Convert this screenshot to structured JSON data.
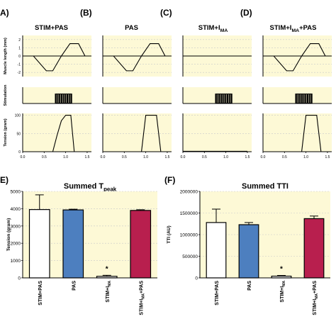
{
  "panels_top": [
    {
      "letter": "A)",
      "title": "STIM+PAS",
      "stim": true,
      "tension": "stim_pas",
      "stim_base": "STIM+I",
      "stim_sub": "",
      "stim_tail": ""
    },
    {
      "letter": "(B)",
      "title": "PAS",
      "stim": false,
      "tension": "pas"
    },
    {
      "letter": "(C)",
      "title": "",
      "stim": true,
      "tension": "flat",
      "title_base": "STIM+I",
      "title_sub": "MA",
      "title_tail": ""
    },
    {
      "letter": "(D)",
      "title": "",
      "stim": true,
      "tension": "pas",
      "title_base": "STIM+I",
      "title_sub": "MA",
      "title_tail": "+PAS"
    }
  ],
  "row_labels": {
    "muscle_length": "Muscle length (mm)",
    "stimulation": "Stimulation",
    "tension": "Tension (gram)"
  },
  "muscle_length_ticks": [
    "2",
    "1",
    "0",
    "-1",
    "-2"
  ],
  "tension_ticks": [
    "100",
    "50",
    "0"
  ],
  "time_ticks": [
    "0.0",
    "0.5",
    "1.0",
    "1.5"
  ],
  "chart_data": [
    {
      "type": "line",
      "panel": "A",
      "title": "STIM+PAS",
      "series": [
        {
          "name": "Muscle length (mm)",
          "x": [
            0.0,
            0.25,
            0.55,
            0.7,
            0.9,
            1.1,
            1.3,
            1.45
          ],
          "y": [
            0,
            0,
            -1.8,
            -1.8,
            0,
            1.5,
            1.5,
            0
          ]
        },
        {
          "name": "Tension (gram)",
          "x": [
            0.0,
            0.7,
            0.8,
            0.9,
            1.0,
            1.12,
            1.2,
            1.5
          ],
          "y": [
            0,
            0,
            45,
            85,
            100,
            100,
            0,
            0
          ]
        }
      ],
      "stimulation": {
        "x_range": [
          0.75,
          1.15
        ]
      }
    },
    {
      "type": "line",
      "panel": "B",
      "title": "PAS",
      "series": [
        {
          "name": "Muscle length (mm)",
          "x": [
            0.0,
            0.25,
            0.55,
            0.7,
            0.9,
            1.1,
            1.3,
            1.45
          ],
          "y": [
            0,
            0,
            -1.8,
            -1.8,
            0,
            1.5,
            1.5,
            0
          ]
        },
        {
          "name": "Tension (gram)",
          "x": [
            0.0,
            0.9,
            1.0,
            1.25,
            1.35,
            1.5
          ],
          "y": [
            0,
            0,
            100,
            100,
            0,
            0
          ]
        }
      ]
    },
    {
      "type": "line",
      "panel": "C",
      "title": "STIM+I_MA",
      "series": [
        {
          "name": "Muscle length (mm)",
          "x": [
            0.0,
            1.5
          ],
          "y": [
            0,
            0
          ]
        },
        {
          "name": "Tension (gram)",
          "x": [
            0.0,
            1.5
          ],
          "y": [
            1,
            1
          ]
        }
      ],
      "stimulation": {
        "x_range": [
          0.75,
          1.15
        ]
      }
    },
    {
      "type": "line",
      "panel": "D",
      "title": "STIM+I_MA+PAS",
      "series": [
        {
          "name": "Muscle length (mm)",
          "x": [
            0.0,
            0.25,
            0.55,
            0.7,
            0.9,
            1.1,
            1.3,
            1.45
          ],
          "y": [
            0,
            0,
            -1.8,
            -1.8,
            0,
            1.5,
            1.5,
            0
          ]
        },
        {
          "name": "Tension (gram)",
          "x": [
            0.0,
            0.9,
            1.0,
            1.25,
            1.35,
            1.5
          ],
          "y": [
            0,
            0,
            100,
            100,
            0,
            0
          ]
        }
      ],
      "stimulation": {
        "x_range": [
          0.75,
          1.15
        ]
      }
    },
    {
      "type": "bar",
      "panel": "E",
      "letter": "E)",
      "title": "Summed T",
      "title_sub": "peak",
      "ylabel": "Tension (gram)",
      "ylim": [
        0,
        5000
      ],
      "yticks": [
        "0",
        "1000",
        "2000",
        "3000",
        "4000",
        "5000"
      ],
      "categories": [
        "STIM+PAS",
        "PAS",
        "STIM+I_MA",
        "STIM+I_MA+PAS"
      ],
      "values": [
        3950,
        3930,
        90,
        3900
      ],
      "errors": [
        850,
        40,
        60,
        40
      ],
      "colors": [
        "#ffffff",
        "#4d7fbf",
        "#ffffff",
        "#b81f4e"
      ],
      "significance": {
        "index": 2,
        "mark": "*"
      }
    },
    {
      "type": "bar",
      "panel": "F",
      "letter": "(F)",
      "title": "Summed TTI",
      "ylabel": "TTI (AU)",
      "ylim": [
        0,
        2000000
      ],
      "yticks": [
        "0",
        "500000",
        "1000000",
        "1500000",
        "2000000"
      ],
      "categories": [
        "STIM+PAS",
        "PAS",
        "STIM+I_MA",
        "STIM+I_MA+PAS"
      ],
      "values": [
        1280000,
        1230000,
        40000,
        1370000
      ],
      "errors": [
        310000,
        50000,
        15000,
        60000
      ],
      "colors": [
        "#ffffff",
        "#4d7fbf",
        "#ffffff",
        "#b81f4e"
      ],
      "significance": {
        "index": 2,
        "mark": "*"
      }
    }
  ],
  "bar_category_labels": [
    {
      "base": "STIM+PAS",
      "sub": "",
      "tail": ""
    },
    {
      "base": "PAS",
      "sub": "",
      "tail": ""
    },
    {
      "base": "STIM+I",
      "sub": "MA",
      "tail": ""
    },
    {
      "base": "STIM+I",
      "sub": "MA",
      "tail": "+PAS"
    }
  ],
  "colors": {
    "panel_bg": "#fdf9d6",
    "grid": "#c9c9c9",
    "blue": "#4d7fbf",
    "red": "#b81f4e"
  }
}
